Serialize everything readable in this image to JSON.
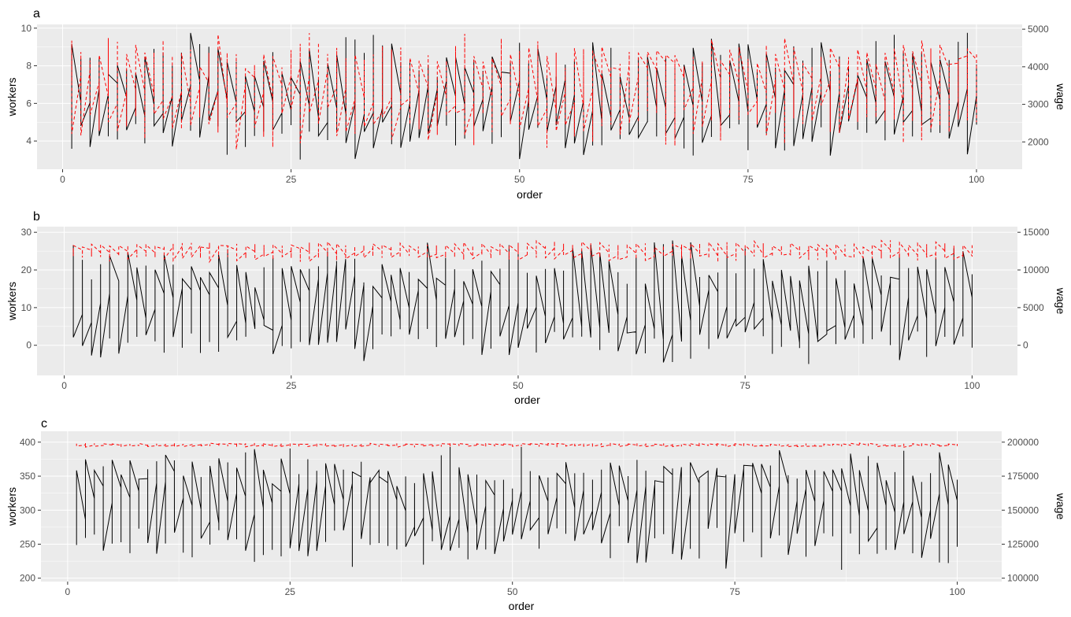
{
  "colors": {
    "panel_bg": "#ebebeb",
    "grid_major": "#ffffff",
    "workers_line": "#000000",
    "wage_line": "#ff0000",
    "tick_text": "#4d4d4d"
  },
  "chart_data": [
    {
      "panel_label": "a",
      "type": "line",
      "xlabel": "order",
      "ylabel": "workers",
      "y2label": "wage",
      "xlim": [
        -2.8,
        105
      ],
      "xticks": [
        0,
        25,
        50,
        75,
        100
      ],
      "ylim": [
        2.5,
        10.2
      ],
      "yticks": [
        4,
        6,
        8,
        10
      ],
      "y2lim": [
        1274,
        5128
      ],
      "y2ticks": [
        2000,
        3000,
        4000,
        5000
      ],
      "x_range": [
        1,
        100
      ],
      "series": [
        {
          "axis": "left",
          "style": "solid",
          "color": "#000000",
          "lo": 2.9,
          "hi": 10.0,
          "center": 6.1,
          "range": [
            3.6,
            9.5
          ],
          "amp": 1.3
        },
        {
          "axis": "right",
          "style": "dashed",
          "color": "#ff0000",
          "lo": 1700,
          "hi": 5000,
          "center": 3500,
          "range": [
            2100,
            4800
          ],
          "amp": 650
        }
      ]
    },
    {
      "panel_label": "b",
      "type": "line",
      "xlabel": "order",
      "ylabel": "workers",
      "y2label": "wage",
      "xlim": [
        -3,
        105
      ],
      "xticks": [
        0,
        25,
        50,
        75,
        100
      ],
      "ylim": [
        -8,
        31.5
      ],
      "yticks": [
        0,
        10,
        20,
        30
      ],
      "y2lim": [
        -4000,
        15750
      ],
      "y2ticks": [
        0,
        5000,
        10000,
        15000
      ],
      "x_range": [
        1,
        100
      ],
      "series": [
        {
          "axis": "left",
          "style": "solid",
          "color": "#000000",
          "lo": -6,
          "hi": 29,
          "center": 10,
          "range": [
            -3,
            27
          ],
          "amp": 8
        },
        {
          "axis": "right",
          "style": "dashed",
          "color": "#ff0000",
          "lo": 11000,
          "hi": 14000,
          "center": 12500,
          "range": [
            11300,
            13600
          ],
          "amp": 700
        }
      ]
    },
    {
      "panel_label": "c",
      "type": "line",
      "xlabel": "order",
      "ylabel": "workers",
      "y2label": "wage",
      "xlim": [
        -3,
        105
      ],
      "xticks": [
        0,
        25,
        50,
        75,
        100
      ],
      "ylim": [
        195,
        416
      ],
      "yticks": [
        200,
        250,
        300,
        350,
        400
      ],
      "y2lim": [
        97500,
        208000
      ],
      "y2ticks": [
        100000,
        125000,
        150000,
        175000,
        200000
      ],
      "x_range": [
        1,
        100
      ],
      "series": [
        {
          "axis": "left",
          "style": "solid",
          "color": "#000000",
          "lo": 207,
          "hi": 400,
          "center": 305,
          "range": [
            230,
            380
          ],
          "amp": 45
        },
        {
          "axis": "right",
          "style": "dashed",
          "color": "#ff0000",
          "lo": 196000,
          "hi": 199500,
          "center": 198000,
          "range": [
            196500,
            199200
          ],
          "amp": 700
        }
      ]
    }
  ]
}
